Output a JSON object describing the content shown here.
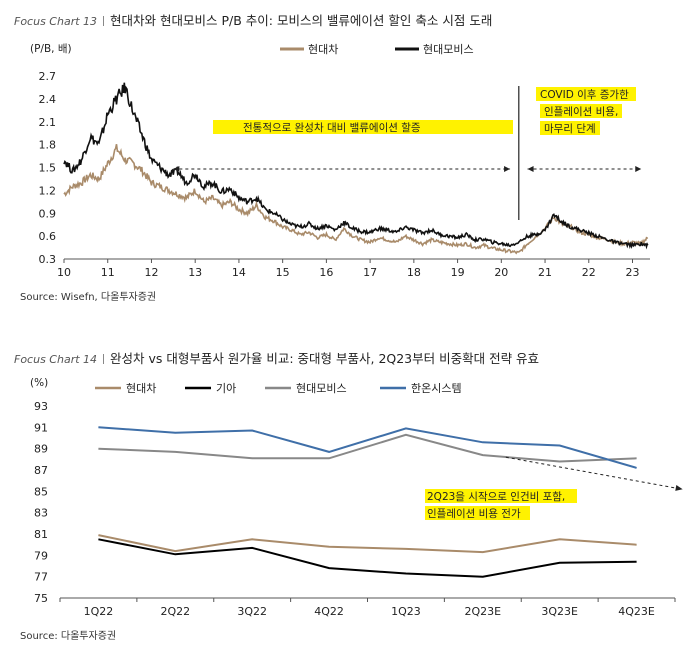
{
  "chart_data": [
    {
      "type": "line",
      "tag": "Focus Chart 13",
      "title": "현대차와 현대모비스 P/B 추이: 모비스의 밸류에이션 할인 축소 시점 도래",
      "ylabel": "(P/B, 배)",
      "xlabel": "",
      "xlim": [
        10,
        23.4
      ],
      "ylim": [
        0.3,
        2.7
      ],
      "x_ticks": [
        10,
        11,
        12,
        13,
        14,
        15,
        16,
        17,
        18,
        19,
        20,
        21,
        22,
        23
      ],
      "x_tick_labels": [
        "10",
        "11",
        "12",
        "13",
        "14",
        "15",
        "16",
        "17",
        "18",
        "19",
        "20",
        "21",
        "22",
        "23"
      ],
      "y_ticks": [
        0.3,
        0.6,
        0.9,
        1.2,
        1.5,
        1.8,
        2.1,
        2.4,
        2.7
      ],
      "y_tick_labels": [
        "0.3",
        "0.6",
        "0.9",
        "1.2",
        "1.5",
        "1.8",
        "2.1",
        "2.4",
        "2.7"
      ],
      "legend_position": "top",
      "vertical_line_x": 20.4,
      "annotations": [
        {
          "text": "전통적으로 완성차 대비 밸류에이션 할증",
          "x_from": 12.5,
          "x_to": 20.2,
          "y": 1.48
        },
        {
          "text_lines": [
            "COVID 이후 증가한",
            "인플레이션 비용,",
            "마무리 단계"
          ],
          "x_from": 20.6,
          "x_to": 23.2,
          "y": 1.48
        }
      ],
      "series": [
        {
          "name": "현대차",
          "color": "#a98b6a",
          "x": [
            10.0,
            10.2,
            10.4,
            10.6,
            10.8,
            11.0,
            11.2,
            11.4,
            11.6,
            11.8,
            12.0,
            12.2,
            12.4,
            12.6,
            12.8,
            13.0,
            13.2,
            13.4,
            13.6,
            13.8,
            14.0,
            14.2,
            14.4,
            14.6,
            14.8,
            15.0,
            15.2,
            15.4,
            15.6,
            15.8,
            16.0,
            16.2,
            16.4,
            16.6,
            16.8,
            17.0,
            17.2,
            17.4,
            17.6,
            17.8,
            18.0,
            18.2,
            18.4,
            18.6,
            18.8,
            19.0,
            19.2,
            19.4,
            19.6,
            19.8,
            20.0,
            20.2,
            20.4,
            20.6,
            20.8,
            21.0,
            21.2,
            21.4,
            21.6,
            21.8,
            22.0,
            22.2,
            22.4,
            22.6,
            22.8,
            23.0,
            23.2,
            23.35
          ],
          "values": [
            1.15,
            1.25,
            1.3,
            1.4,
            1.35,
            1.55,
            1.75,
            1.6,
            1.55,
            1.45,
            1.3,
            1.25,
            1.2,
            1.15,
            1.1,
            1.2,
            1.05,
            1.1,
            1.0,
            1.05,
            0.95,
            0.9,
            1.0,
            0.85,
            0.8,
            0.72,
            0.68,
            0.62,
            0.65,
            0.58,
            0.62,
            0.55,
            0.7,
            0.6,
            0.55,
            0.52,
            0.58,
            0.55,
            0.52,
            0.6,
            0.55,
            0.5,
            0.55,
            0.52,
            0.5,
            0.48,
            0.5,
            0.45,
            0.48,
            0.44,
            0.42,
            0.4,
            0.38,
            0.5,
            0.6,
            0.7,
            0.85,
            0.75,
            0.72,
            0.65,
            0.62,
            0.58,
            0.56,
            0.52,
            0.5,
            0.52,
            0.5,
            0.58
          ]
        },
        {
          "name": "현대모비스",
          "color": "#111111",
          "x": [
            10.0,
            10.2,
            10.4,
            10.6,
            10.8,
            11.0,
            11.2,
            11.4,
            11.6,
            11.8,
            12.0,
            12.2,
            12.4,
            12.6,
            12.8,
            13.0,
            13.2,
            13.4,
            13.6,
            13.8,
            14.0,
            14.2,
            14.4,
            14.6,
            14.8,
            15.0,
            15.2,
            15.4,
            15.6,
            15.8,
            16.0,
            16.2,
            16.4,
            16.6,
            16.8,
            17.0,
            17.2,
            17.4,
            17.6,
            17.8,
            18.0,
            18.2,
            18.4,
            18.6,
            18.8,
            19.0,
            19.2,
            19.4,
            19.6,
            19.8,
            20.0,
            20.2,
            20.4,
            20.6,
            20.8,
            21.0,
            21.2,
            21.4,
            21.6,
            21.8,
            22.0,
            22.2,
            22.4,
            22.6,
            22.8,
            23.0,
            23.2,
            23.35
          ],
          "values": [
            1.6,
            1.45,
            1.6,
            1.9,
            1.8,
            2.2,
            2.4,
            2.55,
            2.2,
            1.9,
            1.6,
            1.5,
            1.4,
            1.45,
            1.3,
            1.42,
            1.25,
            1.3,
            1.18,
            1.22,
            1.1,
            1.05,
            1.1,
            0.95,
            0.9,
            0.82,
            0.75,
            0.72,
            0.76,
            0.7,
            0.74,
            0.68,
            0.78,
            0.7,
            0.66,
            0.65,
            0.7,
            0.68,
            0.65,
            0.72,
            0.68,
            0.64,
            0.68,
            0.62,
            0.6,
            0.58,
            0.62,
            0.55,
            0.56,
            0.52,
            0.5,
            0.48,
            0.52,
            0.6,
            0.62,
            0.68,
            0.88,
            0.78,
            0.72,
            0.68,
            0.64,
            0.6,
            0.56,
            0.52,
            0.5,
            0.48,
            0.5,
            0.48
          ]
        }
      ],
      "source": "Source: Wisefn, 다올투자증권"
    },
    {
      "type": "line",
      "tag": "Focus Chart 14",
      "title": "완성차 vs 대형부품사 원가율 비교: 중대형 부품사, 2Q23부터 비중확대 전략 유효",
      "ylabel": "(%)",
      "xlabel": "",
      "categories": [
        "1Q22",
        "2Q22",
        "3Q22",
        "4Q22",
        "1Q23",
        "2Q23E",
        "3Q23E",
        "4Q23E"
      ],
      "ylim": [
        75,
        93
      ],
      "y_ticks": [
        75,
        77,
        79,
        81,
        83,
        85,
        87,
        89,
        91,
        93
      ],
      "y_tick_labels": [
        "75",
        "77",
        "79",
        "81",
        "83",
        "85",
        "87",
        "89",
        "91",
        "93"
      ],
      "legend_position": "top",
      "annotations": [
        {
          "text_lines": [
            "2Q23을 시작으로 인건비 포함,",
            "인플레이션 비용 전가"
          ],
          "arrow_from": [
            5.3,
            88.2
          ],
          "arrow_to": [
            7.6,
            85.2
          ]
        }
      ],
      "series": [
        {
          "name": "현대차",
          "color": "#a98b6a",
          "values": [
            80.9,
            79.4,
            80.5,
            79.8,
            79.6,
            79.3,
            80.5,
            80.0
          ]
        },
        {
          "name": "기아",
          "color": "#000000",
          "values": [
            80.5,
            79.1,
            79.7,
            77.8,
            77.3,
            77.0,
            78.3,
            78.4
          ]
        },
        {
          "name": "현대모비스",
          "color": "#888888",
          "values": [
            89.0,
            88.7,
            88.1,
            88.1,
            90.3,
            88.4,
            87.8,
            88.1
          ]
        },
        {
          "name": "한온시스템",
          "color": "#3f6fa8",
          "values": [
            91.0,
            90.5,
            90.7,
            88.7,
            90.9,
            89.6,
            89.3,
            87.2
          ]
        }
      ],
      "source": "Source: 다올투자증권"
    }
  ]
}
